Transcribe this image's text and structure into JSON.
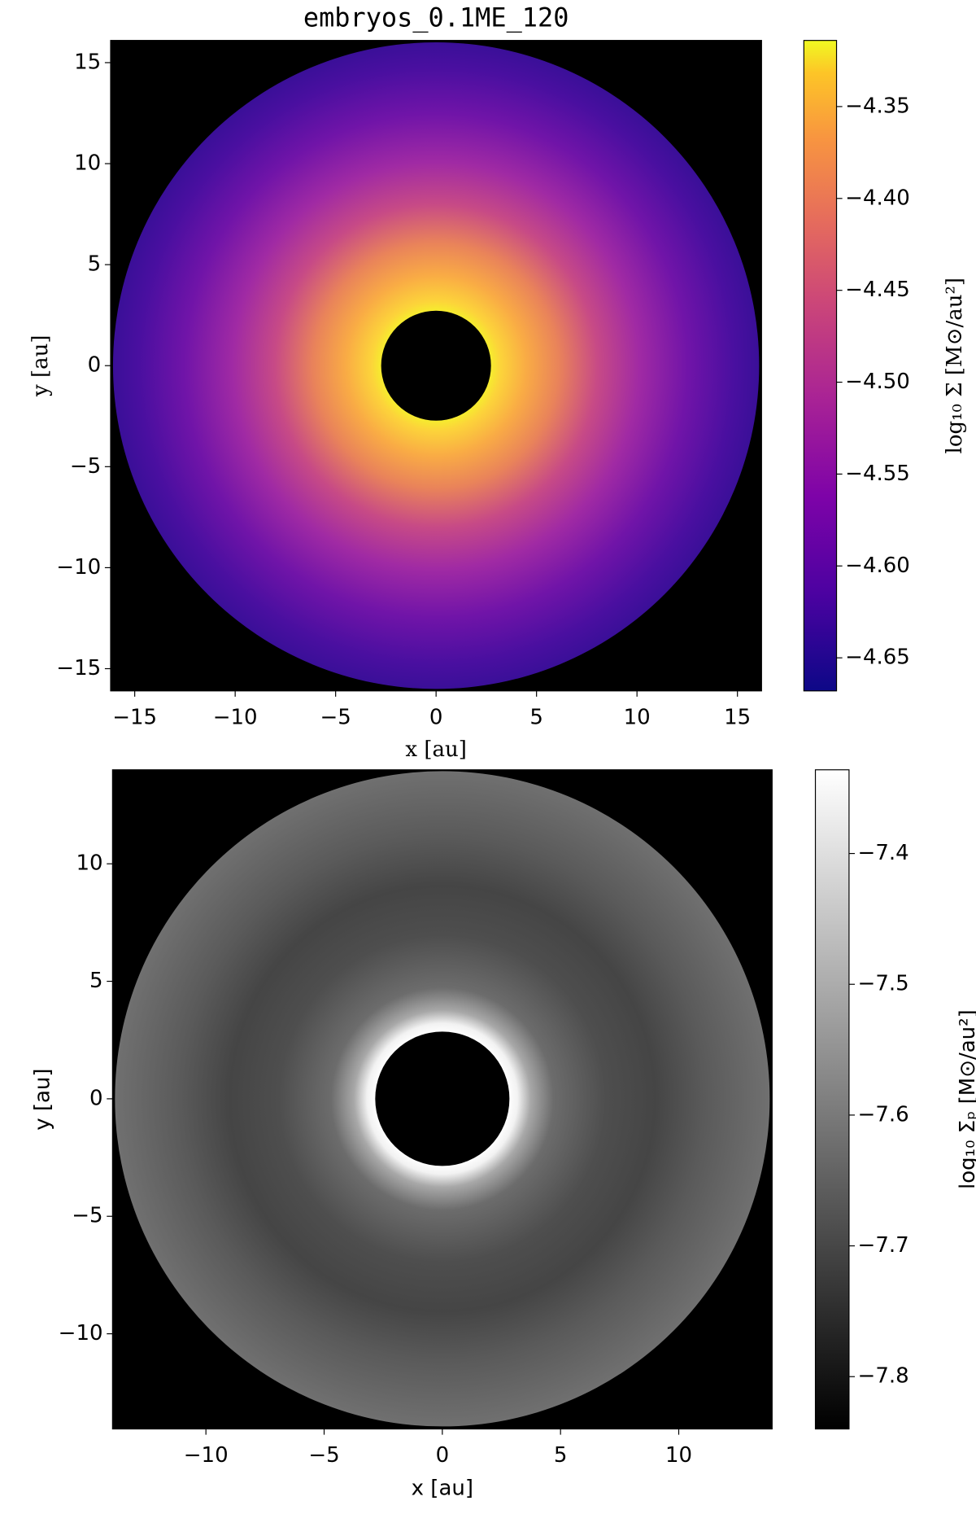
{
  "chart_data": [
    {
      "type": "heatmap",
      "title": "embryos_0.1ME_120",
      "xlabel": "x [au]",
      "ylabel": "y [au]",
      "xlim": [
        -16.2,
        16.2
      ],
      "ylim": [
        -16.1,
        16.1
      ],
      "xticks": [
        {
          "value": -15,
          "label": "−15"
        },
        {
          "value": -10,
          "label": "−10"
        },
        {
          "value": -5,
          "label": "−5"
        },
        0,
        5,
        10,
        15
      ],
      "yticks": [
        {
          "value": -15,
          "label": "−15"
        },
        {
          "value": -10,
          "label": "−10"
        },
        {
          "value": -5,
          "label": "−5"
        },
        0,
        5,
        10,
        15
      ],
      "background": "#000000",
      "colorbar": {
        "label": "log₁₀ Σ [M⊙/au²]",
        "cmap": "plasma",
        "clim": [
          -4.668,
          -4.314
        ],
        "ticks": [
          {
            "value": -4.35,
            "label": "−4.35"
          },
          {
            "value": -4.4,
            "label": "−4.40"
          },
          {
            "value": -4.45,
            "label": "−4.45"
          },
          {
            "value": -4.5,
            "label": "−4.50"
          },
          {
            "value": -4.55,
            "label": "−4.55"
          },
          {
            "value": -4.6,
            "label": "−4.60"
          },
          {
            "value": -4.65,
            "label": "−4.65"
          }
        ]
      }
    },
    {
      "type": "heatmap",
      "xlabel": "x [au]",
      "ylabel": "y [au]",
      "xlim": [
        -13.95,
        13.95
      ],
      "ylim": [
        -14.05,
        14.0
      ],
      "xticks": [
        {
          "value": -10,
          "label": "−10"
        },
        {
          "value": -5,
          "label": "−5"
        },
        0,
        5,
        10
      ],
      "yticks": [
        {
          "value": -10,
          "label": "−10"
        },
        {
          "value": -5,
          "label": "−5"
        },
        0,
        5,
        10
      ],
      "background": "#000000",
      "colorbar": {
        "label": "log₁₀ Σₚ [M⊙/au²]",
        "cmap": "gray",
        "clim": [
          -7.84,
          -7.336
        ],
        "ticks": [
          {
            "value": -7.4,
            "label": "−7.4"
          },
          {
            "value": -7.5,
            "label": "−7.5"
          },
          {
            "value": -7.6,
            "label": "−7.6"
          },
          {
            "value": -7.7,
            "label": "−7.7"
          },
          {
            "value": -7.8,
            "label": "−7.8"
          }
        ]
      }
    }
  ]
}
